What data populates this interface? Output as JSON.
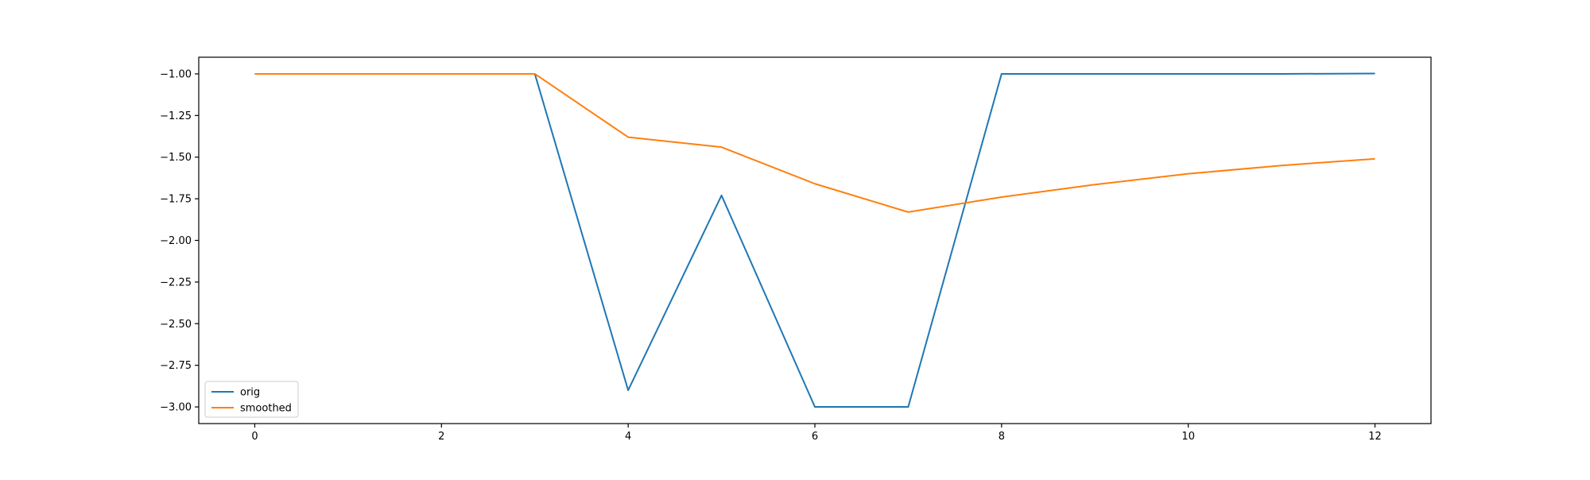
{
  "chart_data": {
    "type": "line",
    "title": "",
    "xlabel": "",
    "ylabel": "",
    "xlim": [
      -0.6,
      12.6
    ],
    "ylim": [
      -3.1,
      -0.9
    ],
    "x_ticks": [
      0,
      2,
      4,
      6,
      8,
      10,
      12
    ],
    "x_tick_labels": [
      "0",
      "2",
      "4",
      "6",
      "8",
      "10",
      "12"
    ],
    "y_ticks": [
      -1.0,
      -1.25,
      -1.5,
      -1.75,
      -2.0,
      -2.25,
      -2.5,
      -2.75,
      -3.0
    ],
    "y_tick_labels": [
      "−1.00",
      "−1.25",
      "−1.50",
      "−1.75",
      "−2.00",
      "−2.25",
      "−2.50",
      "−2.75",
      "−3.00"
    ],
    "grid": false,
    "legend_position": "lower-left",
    "x": [
      0,
      1,
      2,
      3,
      4,
      5,
      6,
      7,
      8,
      9,
      10,
      11,
      12
    ],
    "series": [
      {
        "name": "orig",
        "color": "#1f77b4",
        "values": [
          -1.0,
          -1.0,
          -1.0,
          -1.0,
          -2.9,
          -1.73,
          -3.0,
          -3.0,
          -1.0,
          -1.0,
          -1.0,
          -1.0,
          -0.998
        ]
      },
      {
        "name": "smoothed",
        "color": "#ff7f0e",
        "values": [
          -1.0,
          -1.0,
          -1.0,
          -1.0,
          -1.38,
          -1.44,
          -1.66,
          -1.83,
          -1.74,
          -1.665,
          -1.6,
          -1.55,
          -1.51
        ]
      }
    ]
  }
}
